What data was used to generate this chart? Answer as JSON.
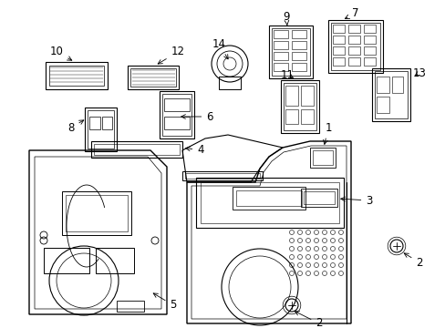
{
  "bg_color": "#ffffff",
  "line_color": "#000000",
  "fig_width": 4.89,
  "fig_height": 3.6,
  "dpi": 100,
  "label_fs": 8.5
}
